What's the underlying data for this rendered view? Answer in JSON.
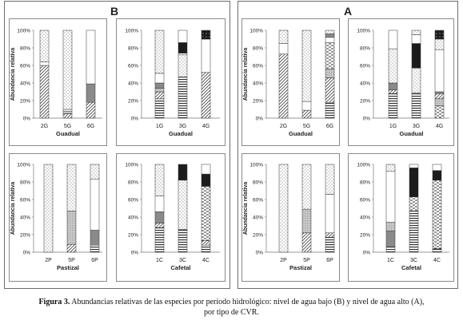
{
  "panels": [
    {
      "letter": "B"
    },
    {
      "letter": "A"
    }
  ],
  "caption": {
    "label": "Figura 3.",
    "line1": " Abundancias relativas de las especies por período hidrológico: nivel de agua bajo (B) y nivel de agua alto (A),",
    "line2": "por tipo de CVR."
  },
  "chart_data": [
    {
      "id": "B-guadual-a",
      "type": "bar",
      "stacked": true,
      "xlabel": "Guadual",
      "ylabel": "Abundancia relativa",
      "yticks": [
        "0%",
        "20%",
        "40%",
        "60%",
        "80%",
        "100%"
      ],
      "ylim": [
        0,
        100
      ],
      "categories": [
        "2G",
        "5G",
        "6G"
      ],
      "bars": [
        [
          {
            "v": 60,
            "f": "diag"
          },
          {
            "v": 4,
            "f": "white"
          },
          {
            "v": 36,
            "f": "dots"
          }
        ],
        [
          {
            "v": 5,
            "f": "diag"
          },
          {
            "v": 3,
            "f": "light"
          },
          {
            "v": 2,
            "f": "white"
          },
          {
            "v": 90,
            "f": "dots"
          }
        ],
        [
          {
            "v": 18,
            "f": "diag"
          },
          {
            "v": 21,
            "f": "gray"
          },
          {
            "v": 61,
            "f": "white"
          }
        ]
      ]
    },
    {
      "id": "B-guadual-b",
      "type": "bar",
      "stacked": true,
      "xlabel": "Guadual",
      "ylabel": "",
      "yticks": [
        "0%",
        "20%",
        "40%",
        "60%",
        "80%",
        "100%"
      ],
      "ylim": [
        0,
        100
      ],
      "categories": [
        "1G",
        "3G",
        "4G"
      ],
      "bars": [
        [
          {
            "v": 22,
            "f": "hlines"
          },
          {
            "v": 8,
            "f": "diag"
          },
          {
            "v": 4,
            "f": "light"
          },
          {
            "v": 6,
            "f": "gray"
          },
          {
            "v": 11,
            "f": "white"
          },
          {
            "v": 49,
            "f": "dots"
          }
        ],
        [
          {
            "v": 47,
            "f": "hlines"
          },
          {
            "v": 25,
            "f": "dots"
          },
          {
            "v": 2,
            "f": "white"
          },
          {
            "v": 12,
            "f": "black"
          },
          {
            "v": 14,
            "f": "white"
          }
        ],
        [
          {
            "v": 52,
            "f": "diag"
          },
          {
            "v": 38,
            "f": "white"
          },
          {
            "v": 10,
            "f": "blackdots"
          }
        ]
      ]
    },
    {
      "id": "B-pastizal-a",
      "type": "bar",
      "stacked": true,
      "xlabel": "Pastizal",
      "ylabel": "Abundancia relativa",
      "yticks": [
        "0%",
        "20%",
        "40%",
        "60%",
        "80%",
        "100%"
      ],
      "ylim": [
        0,
        100
      ],
      "categories": [
        "2P",
        "5P",
        "6P"
      ],
      "bars": [
        [
          {
            "v": 100,
            "f": "dots"
          }
        ],
        [
          {
            "v": 9,
            "f": "diag"
          },
          {
            "v": 38,
            "f": "light"
          },
          {
            "v": 53,
            "f": "dots"
          }
        ],
        [
          {
            "v": 8,
            "f": "hlines"
          },
          {
            "v": 17,
            "f": "gray"
          },
          {
            "v": 58,
            "f": "white"
          },
          {
            "v": 17,
            "f": "dots"
          }
        ]
      ]
    },
    {
      "id": "B-cafetal",
      "type": "bar",
      "stacked": true,
      "xlabel": "Cafetal",
      "ylabel": "",
      "yticks": [
        "0%",
        "20%",
        "40%",
        "60%",
        "80%",
        "100%"
      ],
      "ylim": [
        0,
        100
      ],
      "categories": [
        "1C",
        "3C",
        "4C"
      ],
      "bars": [
        [
          {
            "v": 28,
            "f": "hlines"
          },
          {
            "v": 5,
            "f": "diag"
          },
          {
            "v": 13,
            "f": "gray"
          },
          {
            "v": 18,
            "f": "white"
          },
          {
            "v": 36,
            "f": "dots"
          }
        ],
        [
          {
            "v": 26,
            "f": "hlines"
          },
          {
            "v": 56,
            "f": "dots"
          },
          {
            "v": 18,
            "f": "black"
          }
        ],
        [
          {
            "v": 8,
            "f": "hlines"
          },
          {
            "v": 5,
            "f": "diag"
          },
          {
            "v": 62,
            "f": "dashes"
          },
          {
            "v": 14,
            "f": "black"
          },
          {
            "v": 11,
            "f": "white"
          }
        ]
      ]
    },
    {
      "id": "A-guadual-a",
      "type": "bar",
      "stacked": true,
      "xlabel": "Guadual",
      "ylabel": "Abundancia relativa",
      "yticks": [
        "0%",
        "20%",
        "40%",
        "60%",
        "80%",
        "100%"
      ],
      "ylim": [
        0,
        100
      ],
      "categories": [
        "2G",
        "5G",
        "6G"
      ],
      "bars": [
        [
          {
            "v": 73,
            "f": "diag"
          },
          {
            "v": 12,
            "f": "white"
          },
          {
            "v": 15,
            "f": "dots"
          }
        ],
        [
          {
            "v": 9,
            "f": "diag"
          },
          {
            "v": 10,
            "f": "white"
          },
          {
            "v": 81,
            "f": "dots"
          }
        ],
        [
          {
            "v": 18,
            "f": "hlines"
          },
          {
            "v": 28,
            "f": "diag"
          },
          {
            "v": 10,
            "f": "light"
          },
          {
            "v": 30,
            "f": "dashes"
          },
          {
            "v": 6,
            "f": "white"
          },
          {
            "v": 4,
            "f": "gray"
          },
          {
            "v": 4,
            "f": "dots"
          }
        ]
      ]
    },
    {
      "id": "A-guadual-b",
      "type": "bar",
      "stacked": true,
      "xlabel": "Guadual",
      "ylabel": "",
      "yticks": [
        "0%",
        "20%",
        "40%",
        "60%",
        "80%",
        "100%"
      ],
      "ylim": [
        0,
        100
      ],
      "categories": [
        "1G",
        "3G",
        "4G"
      ],
      "bars": [
        [
          {
            "v": 28,
            "f": "hlines"
          },
          {
            "v": 4,
            "f": "diag"
          },
          {
            "v": 8,
            "f": "gray"
          },
          {
            "v": 39,
            "f": "dots"
          },
          {
            "v": 21,
            "f": "white"
          }
        ],
        [
          {
            "v": 29,
            "f": "hlines"
          },
          {
            "v": 28,
            "f": "dots"
          },
          {
            "v": 28,
            "f": "black"
          },
          {
            "v": 10,
            "f": "white"
          },
          {
            "v": 5,
            "f": "dots"
          }
        ],
        [
          {
            "v": 14,
            "f": "dashes"
          },
          {
            "v": 8,
            "f": "light"
          },
          {
            "v": 6,
            "f": "diag"
          },
          {
            "v": 2,
            "f": "gray"
          },
          {
            "v": 48,
            "f": "white"
          },
          {
            "v": 12,
            "f": "dots"
          },
          {
            "v": 10,
            "f": "blackdots"
          }
        ]
      ]
    },
    {
      "id": "A-pastizal-a",
      "type": "bar",
      "stacked": true,
      "xlabel": "Pastizal",
      "ylabel": "Abundancia relativa",
      "yticks": [
        "0%",
        "20%",
        "40%",
        "60%",
        "80%",
        "100%"
      ],
      "ylim": [
        0,
        100
      ],
      "categories": [
        "2P",
        "5P",
        "6P"
      ],
      "bars": [
        [
          {
            "v": 100,
            "f": "dots"
          }
        ],
        [
          {
            "v": 22,
            "f": "diag"
          },
          {
            "v": 27,
            "f": "light"
          },
          {
            "v": 51,
            "f": "dots"
          }
        ],
        [
          {
            "v": 17,
            "f": "hlines"
          },
          {
            "v": 5,
            "f": "diag"
          },
          {
            "v": 44,
            "f": "white"
          },
          {
            "v": 34,
            "f": "dots"
          }
        ]
      ]
    },
    {
      "id": "A-cafetal",
      "type": "bar",
      "stacked": true,
      "xlabel": "Cafetal",
      "ylabel": "",
      "yticks": [
        "0%",
        "20%",
        "40%",
        "60%",
        "80%",
        "100%"
      ],
      "ylim": [
        0,
        100
      ],
      "categories": [
        "1C",
        "3C",
        "4C"
      ],
      "bars": [
        [
          {
            "v": 7,
            "f": "hlines"
          },
          {
            "v": 17,
            "f": "gray"
          },
          {
            "v": 10,
            "f": "light"
          },
          {
            "v": 58,
            "f": "white"
          },
          {
            "v": 8,
            "f": "dots"
          }
        ],
        [
          {
            "v": 47,
            "f": "hlines"
          },
          {
            "v": 16,
            "f": "dashes"
          },
          {
            "v": 33,
            "f": "black"
          },
          {
            "v": 4,
            "f": "white"
          }
        ],
        [
          {
            "v": 4,
            "f": "hlines"
          },
          {
            "v": 78,
            "f": "dashes"
          },
          {
            "v": 11,
            "f": "black"
          },
          {
            "v": 7,
            "f": "white"
          }
        ]
      ]
    }
  ]
}
